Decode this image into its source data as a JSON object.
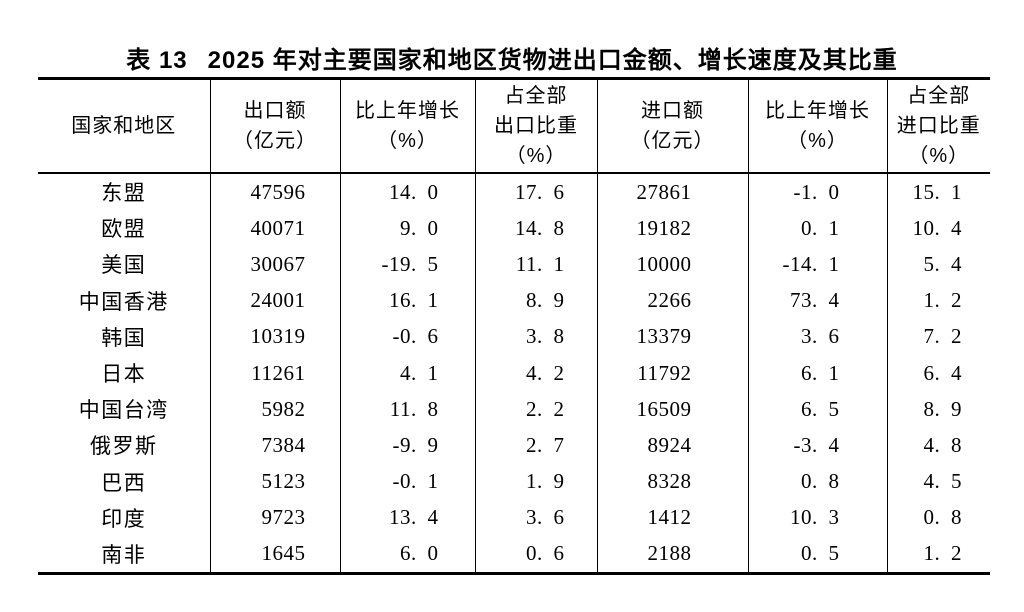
{
  "page": {
    "background": "#ffffff",
    "text_color": "#000000",
    "rule_color": "#000000"
  },
  "title": {
    "label": "表 13",
    "text": "2025 年对主要国家和地区货物进出口金额、增长速度及其比重"
  },
  "table": {
    "headers": [
      {
        "id": "region",
        "lines": [
          "国家和地区"
        ]
      },
      {
        "id": "export-amount",
        "lines": [
          "出口额",
          "（亿元）"
        ]
      },
      {
        "id": "export-growth",
        "lines": [
          "比上年增长",
          "（%）"
        ]
      },
      {
        "id": "export-share",
        "lines": [
          "占全部",
          "出口比重",
          "（%）"
        ]
      },
      {
        "id": "import-amount",
        "lines": [
          "进口额",
          "（亿元）"
        ]
      },
      {
        "id": "import-growth",
        "lines": [
          "比上年增长",
          "（%）"
        ]
      },
      {
        "id": "import-share",
        "lines": [
          "占全部",
          "进口比重",
          "（%）"
        ]
      }
    ],
    "rows": [
      {
        "region": "东盟",
        "values": [
          "47596",
          "14. 0",
          "17. 6",
          "27861",
          "-1. 0",
          "15. 1"
        ]
      },
      {
        "region": "欧盟",
        "values": [
          "40071",
          "9. 0",
          "14. 8",
          "19182",
          "0. 1",
          "10. 4"
        ]
      },
      {
        "region": "美国",
        "values": [
          "30067",
          "-19. 5",
          "11. 1",
          "10000",
          "-14. 1",
          "5. 4"
        ]
      },
      {
        "region": "中国香港",
        "values": [
          "24001",
          "16. 1",
          "8. 9",
          "2266",
          "73. 4",
          "1. 2"
        ]
      },
      {
        "region": "韩国",
        "values": [
          "10319",
          "-0. 6",
          "3. 8",
          "13379",
          "3. 6",
          "7. 2"
        ]
      },
      {
        "region": "日本",
        "values": [
          "11261",
          "4. 1",
          "4. 2",
          "11792",
          "6. 1",
          "6. 4"
        ]
      },
      {
        "region": "中国台湾",
        "values": [
          "5982",
          "11. 8",
          "2. 2",
          "16509",
          "6. 5",
          "8. 9"
        ]
      },
      {
        "region": "俄罗斯",
        "values": [
          "7384",
          "-9. 9",
          "2. 7",
          "8924",
          "-3. 4",
          "4. 8"
        ]
      },
      {
        "region": "巴西",
        "values": [
          "5123",
          "-0. 1",
          "1. 9",
          "8328",
          "0. 8",
          "4. 5"
        ]
      },
      {
        "region": "印度",
        "values": [
          "9723",
          "13. 4",
          "3. 6",
          "1412",
          "10. 3",
          "0. 8"
        ]
      },
      {
        "region": "南非",
        "values": [
          "1645",
          "6. 0",
          "0. 6",
          "2188",
          "0. 5",
          "1. 2"
        ]
      }
    ]
  },
  "chart_data": {
    "type": "table",
    "title": "表 13 2025 年对主要国家和地区货物进出口金额、增长速度及其比重",
    "columns": [
      "国家和地区",
      "出口额（亿元）",
      "比上年增长（%）",
      "占全部出口比重（%）",
      "进口额（亿元）",
      "比上年增长（%）",
      "占全部进口比重（%）"
    ],
    "rows": [
      [
        "东盟",
        47596,
        14.0,
        17.6,
        27861,
        -1.0,
        15.1
      ],
      [
        "欧盟",
        40071,
        9.0,
        14.8,
        19182,
        0.1,
        10.4
      ],
      [
        "美国",
        30067,
        -19.5,
        11.1,
        10000,
        -14.1,
        5.4
      ],
      [
        "中国香港",
        24001,
        16.1,
        8.9,
        2266,
        73.4,
        1.2
      ],
      [
        "韩国",
        10319,
        -0.6,
        3.8,
        13379,
        3.6,
        7.2
      ],
      [
        "日本",
        11261,
        4.1,
        4.2,
        11792,
        6.1,
        6.4
      ],
      [
        "中国台湾",
        5982,
        11.8,
        2.2,
        16509,
        6.5,
        8.9
      ],
      [
        "俄罗斯",
        7384,
        -9.9,
        2.7,
        8924,
        -3.4,
        4.8
      ],
      [
        "巴西",
        5123,
        -0.1,
        1.9,
        8328,
        0.8,
        4.5
      ],
      [
        "印度",
        9723,
        13.4,
        3.6,
        1412,
        10.3,
        0.8
      ],
      [
        "南非",
        1645,
        6.0,
        0.6,
        2188,
        0.5,
        1.2
      ]
    ]
  }
}
